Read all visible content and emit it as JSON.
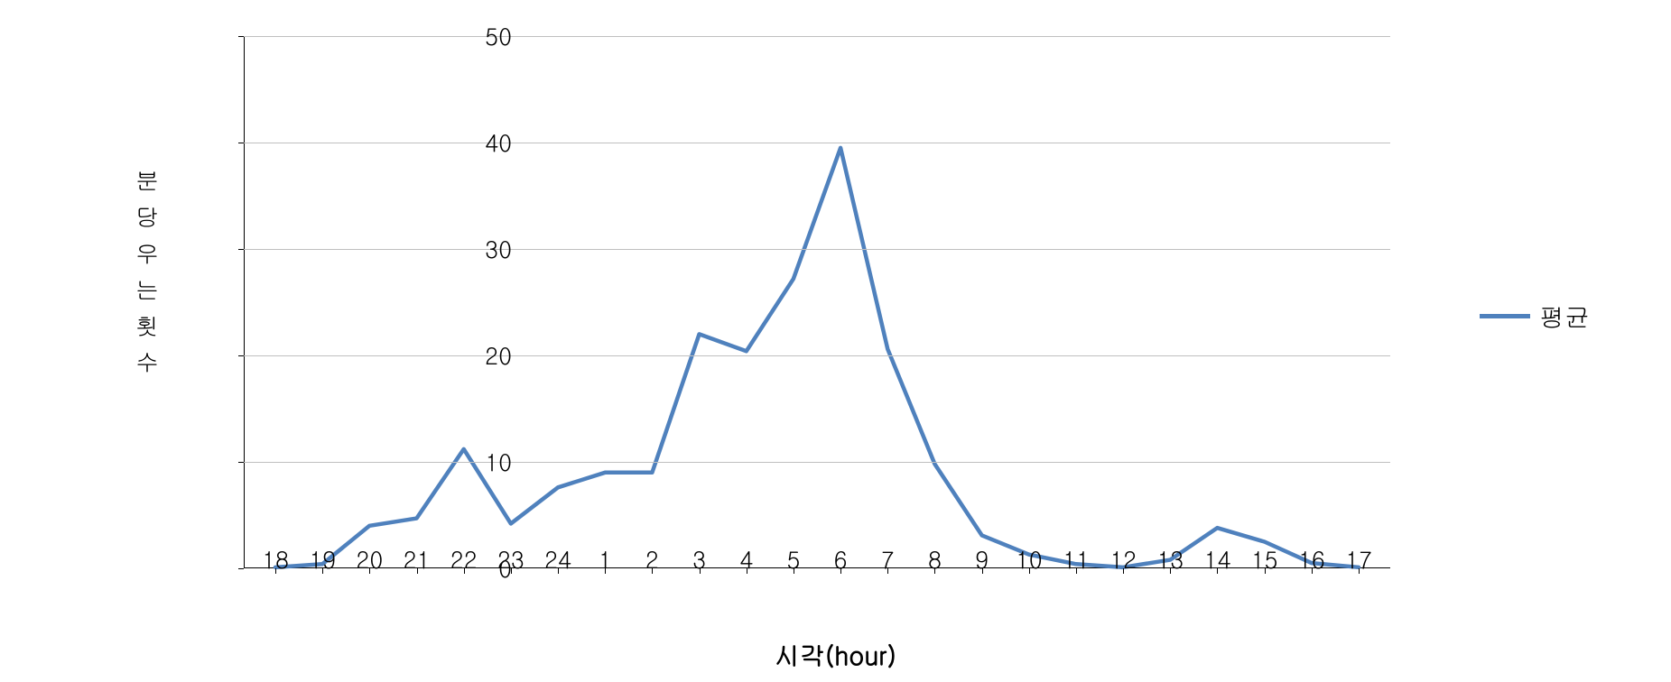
{
  "chart": {
    "type": "line",
    "categories": [
      "18",
      "19",
      "20",
      "21",
      "22",
      "23",
      "24",
      "1",
      "2",
      "3",
      "4",
      "5",
      "6",
      "7",
      "8",
      "9",
      "10",
      "11",
      "12",
      "13",
      "14",
      "15",
      "16",
      "17"
    ],
    "values": [
      0.1,
      0.4,
      4.0,
      4.7,
      11.2,
      4.2,
      7.6,
      9.0,
      9.0,
      22.0,
      20.4,
      27.2,
      39.5,
      20.6,
      9.8,
      3.1,
      1.3,
      0.4,
      0.1,
      0.8,
      3.8,
      2.5,
      0.5,
      0.1
    ],
    "ylim": [
      0,
      50
    ],
    "ytick_step": 10,
    "line_color": "#4f81bd",
    "line_width": 4.5,
    "grid_color": "#bfbfbf",
    "background_color": "#ffffff",
    "ylabel": "분당우는횟수",
    "xlabel": "시각(hour)",
    "legend_label": "평균",
    "tick_fontsize": 26,
    "axislabel_fontsize": 28,
    "legend_fontsize": 28
  }
}
